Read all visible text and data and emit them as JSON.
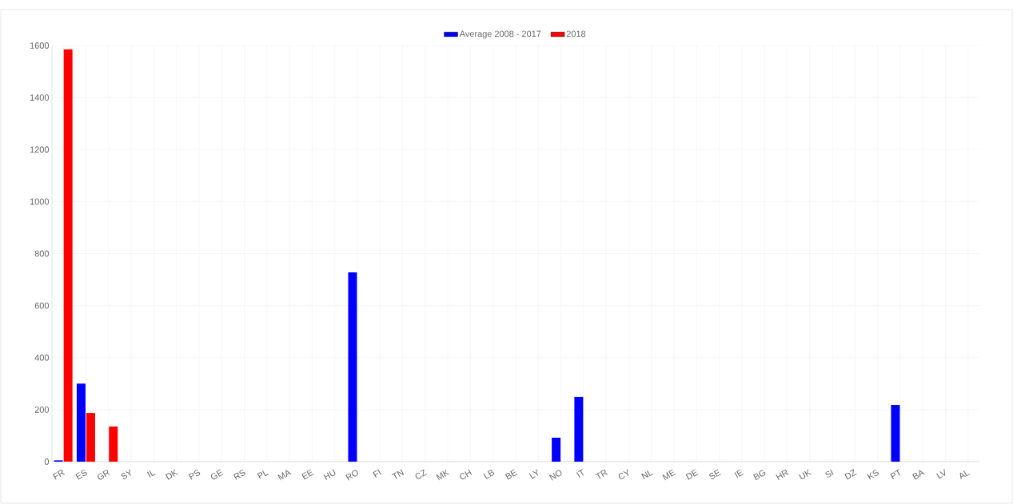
{
  "chart_data": {
    "type": "bar",
    "categories": [
      "FR",
      "ES",
      "GR",
      "SY",
      "IL",
      "DK",
      "PS",
      "GE",
      "RS",
      "PL",
      "MA",
      "EE",
      "HU",
      "RO",
      "FI",
      "TN",
      "CZ",
      "MK",
      "CH",
      "LB",
      "BE",
      "LY",
      "NO",
      "IT",
      "TR",
      "CY",
      "NL",
      "ME",
      "DE",
      "SE",
      "IE",
      "BG",
      "HR",
      "UK",
      "SI",
      "DZ",
      "KS",
      "PT",
      "BA",
      "LV",
      "AL"
    ],
    "series": [
      {
        "name": "Average 2008 - 2017",
        "color": "#0000ff",
        "values": [
          5,
          300,
          0,
          0,
          0,
          0,
          0,
          0,
          0,
          0,
          0,
          0,
          0,
          728,
          0,
          0,
          0,
          0,
          0,
          0,
          0,
          0,
          92,
          249,
          0,
          0,
          0,
          0,
          0,
          0,
          0,
          0,
          0,
          0,
          0,
          0,
          0,
          218,
          0,
          0,
          0
        ]
      },
      {
        "name": "2018",
        "color": "#ff0000",
        "values": [
          1585,
          187,
          135,
          0,
          0,
          0,
          0,
          0,
          0,
          0,
          0,
          0,
          0,
          0,
          0,
          0,
          0,
          0,
          0,
          0,
          0,
          0,
          0,
          0,
          0,
          0,
          0,
          0,
          0,
          0,
          0,
          0,
          0,
          0,
          0,
          0,
          0,
          0,
          0,
          0,
          0
        ]
      }
    ],
    "ylim": [
      0,
      1600
    ],
    "yticks": [
      0,
      200,
      400,
      600,
      800,
      1000,
      1200,
      1400,
      1600
    ],
    "grid": true,
    "legend": "top"
  }
}
